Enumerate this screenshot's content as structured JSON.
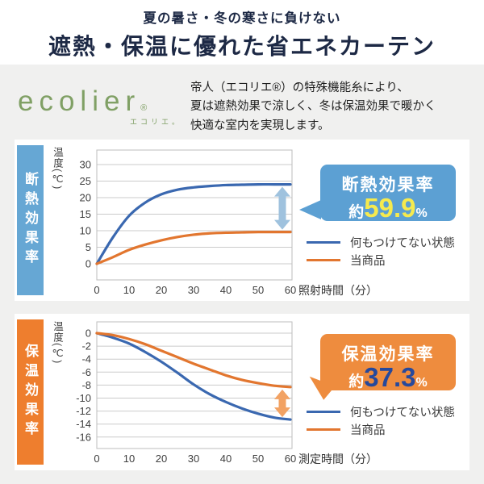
{
  "header": {
    "subtitle": "夏の暑さ・冬の寒さに負けない",
    "title": "遮熱・保温に優れた省エネカーテン"
  },
  "brand": {
    "logo_text": "ecolier",
    "reg_mark": "®",
    "logo_kana": "エコリエ。",
    "description_lines": [
      "帝人（エコリエ®）の特殊機能糸により、",
      "夏は遮熱効果で涼しく、冬は保温効果で暖かく",
      "快適な室内を実現します。"
    ]
  },
  "colors": {
    "title_navy": "#1d2945",
    "background_gray": "#f0f0ef",
    "logo_green": "#80a065",
    "line_blue": "#3a68b0",
    "line_orange": "#e2762f",
    "banner_blue": "#66a7d4",
    "banner_orange": "#ee7e2e",
    "callout_blue": "#5ca0d3",
    "callout_orange": "#ee8c3e",
    "highlight_yellow": "#f6ea4e",
    "highlight_navy": "#26499c",
    "arrow_blue": "#9fc2de",
    "arrow_orange": "#f2a263"
  },
  "chart_data": [
    {
      "type": "line",
      "banner_label": "断熱効果率",
      "ylabel": "温度(℃)",
      "xlabel": "照射時間（分）",
      "x": [
        0,
        5,
        10,
        15,
        20,
        25,
        30,
        35,
        40,
        45,
        50,
        55,
        60
      ],
      "xticks": [
        0,
        10,
        20,
        30,
        40,
        50,
        60
      ],
      "yticks": [
        30,
        25,
        20,
        15,
        10,
        5,
        0
      ],
      "ylim": [
        -5,
        34
      ],
      "xlim": [
        0,
        60
      ],
      "grid": true,
      "legend_position": "right",
      "series": [
        {
          "name": "何もつけてない状態",
          "color": "#3a68b0",
          "values": [
            0,
            8,
            14.5,
            18.5,
            21,
            22.4,
            23.1,
            23.5,
            23.8,
            23.9,
            24,
            24,
            24
          ]
        },
        {
          "name": "当商品",
          "color": "#e2762f",
          "values": [
            0,
            2,
            4.2,
            5.8,
            7.1,
            8.1,
            8.8,
            9.2,
            9.4,
            9.5,
            9.6,
            9.6,
            9.6
          ]
        }
      ],
      "gap_arrow": {
        "x": 57.5,
        "from": 24,
        "to": 9.6,
        "color": "#9fc2de"
      },
      "callout": {
        "title": "断熱効果率",
        "prefix": "約",
        "value": "59.9",
        "unit": "%"
      }
    },
    {
      "type": "line",
      "banner_label": "保温効果率",
      "ylabel": "温度(℃)",
      "xlabel": "測定時間（分）",
      "x": [
        0,
        5,
        10,
        15,
        20,
        25,
        30,
        35,
        40,
        45,
        50,
        55,
        60
      ],
      "xticks": [
        0,
        10,
        20,
        30,
        40,
        50,
        60
      ],
      "yticks": [
        0,
        -2,
        -4,
        -6,
        -8,
        -10,
        -12,
        -14,
        -16
      ],
      "ylim": [
        -17.8,
        1.7
      ],
      "xlim": [
        0,
        60
      ],
      "grid": true,
      "legend_position": "right",
      "series": [
        {
          "name": "何もつけてない状態",
          "color": "#3a68b0",
          "values": [
            0,
            -0.7,
            -1.6,
            -2.9,
            -4.4,
            -6.1,
            -7.9,
            -9.4,
            -10.6,
            -11.6,
            -12.4,
            -13,
            -13.3
          ]
        },
        {
          "name": "当商品",
          "color": "#e2762f",
          "values": [
            0,
            -0.3,
            -0.9,
            -1.7,
            -2.7,
            -3.7,
            -4.7,
            -5.6,
            -6.5,
            -7.2,
            -7.7,
            -8.1,
            -8.3
          ]
        }
      ],
      "gap_arrow": {
        "x": 57.5,
        "from": -8.3,
        "to": -13.3,
        "color": "#f2a263"
      },
      "callout": {
        "title": "保温効果率",
        "prefix": "約",
        "value": "37.3",
        "unit": "%"
      }
    }
  ]
}
